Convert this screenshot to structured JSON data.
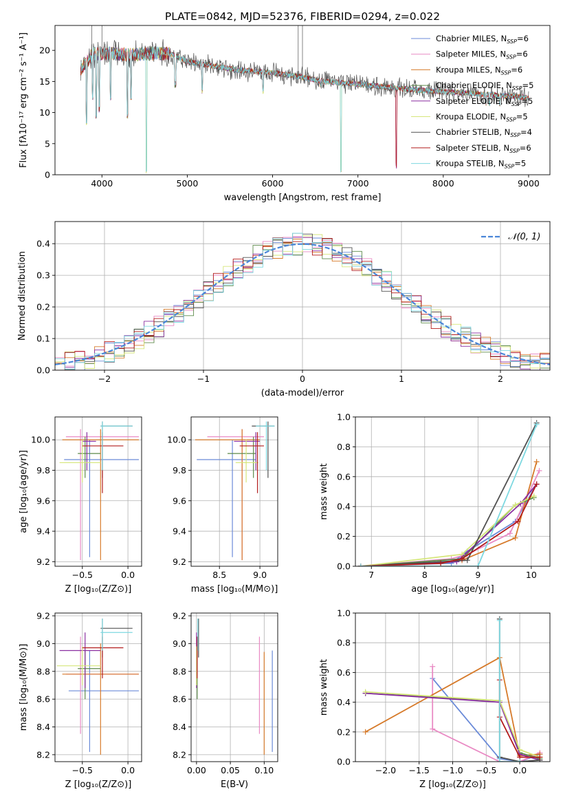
{
  "title": "PLATE=0842, MJD=52376, FIBERID=0294, z=0.022",
  "colors": {
    "chabrier_miles": "#6a8ad8",
    "salpeter_miles": "#e98ac4",
    "kroupa_miles": "#d67a2a",
    "chabrier_elodie": "#5c8a4a",
    "salpeter_elodie": "#8a2ea0",
    "kroupa_elodie": "#d6e67a",
    "chabrier_stelib": "#505050",
    "salpeter_stelib": "#b21a1a",
    "kroupa_stelib": "#7dd8e0",
    "normal_curve": "#4a86d8",
    "grid": "#b0b0b0"
  },
  "chart_data": [
    {
      "id": "spectrum",
      "type": "line",
      "xlabel": "wavelength [Angstrom, rest frame]",
      "ylabel": "Flux [fλ10⁻¹⁷ erg cm⁻² s⁻¹ A⁻¹]",
      "xlim": [
        3450,
        9250
      ],
      "ylim": [
        0,
        24
      ],
      "xticks": [
        "4000",
        "5000",
        "6000",
        "7000",
        "8000",
        "9000"
      ],
      "yticks": [
        "0",
        "5",
        "10",
        "15",
        "20"
      ],
      "legend_position": "top-right",
      "grid": false,
      "series": [
        {
          "name": "Chabrier MILES, N",
          "sub": "SSP",
          "suffix": "=6",
          "color_key": "chabrier_miles"
        },
        {
          "name": "Salpeter MILES, N",
          "sub": "SSP",
          "suffix": "=6",
          "color_key": "salpeter_miles"
        },
        {
          "name": "Kroupa MILES, N",
          "sub": "SSP",
          "suffix": "=6",
          "color_key": "kroupa_miles"
        },
        {
          "name": "Chabrier ELODIE, N",
          "sub": "SSP",
          "suffix": "=5",
          "color_key": "chabrier_elodie"
        },
        {
          "name": "Salpeter ELODIE, N",
          "sub": "SSP",
          "suffix": "=5",
          "color_key": "salpeter_elodie"
        },
        {
          "name": "Kroupa ELODIE, N",
          "sub": "SSP",
          "suffix": "=5",
          "color_key": "kroupa_elodie"
        },
        {
          "name": "Chabrier STELIB, N",
          "sub": "SSP",
          "suffix": "=4",
          "color_key": "chabrier_stelib"
        },
        {
          "name": "Salpeter STELIB, N",
          "sub": "SSP",
          "suffix": "=6",
          "color_key": "salpeter_stelib"
        },
        {
          "name": "Kroupa STELIB, N",
          "sub": "SSP",
          "suffix": "=5",
          "color_key": "kroupa_stelib"
        }
      ],
      "continuum": [
        [
          3750,
          17
        ],
        [
          3900,
          19.5
        ],
        [
          4100,
          19.5
        ],
        [
          4300,
          19.3
        ],
        [
          4600,
          19.5
        ],
        [
          4800,
          19.5
        ],
        [
          5000,
          18.2
        ],
        [
          5300,
          17.5
        ],
        [
          5600,
          16.8
        ],
        [
          6000,
          16.4
        ],
        [
          6300,
          15.8
        ],
        [
          6600,
          15.0
        ],
        [
          7000,
          14.6
        ],
        [
          7400,
          14.0
        ],
        [
          7800,
          13.5
        ],
        [
          8200,
          13.2
        ],
        [
          8600,
          12.8
        ],
        [
          9000,
          12.4
        ]
      ],
      "absorption_dips": [
        [
          3820,
          8
        ],
        [
          3890,
          12
        ],
        [
          3935,
          9
        ],
        [
          3970,
          10
        ],
        [
          4100,
          12
        ],
        [
          4300,
          9
        ],
        [
          4340,
          12
        ],
        [
          4520,
          0
        ],
        [
          4860,
          14
        ],
        [
          5175,
          13
        ],
        [
          5890,
          13
        ],
        [
          6560,
          14
        ],
        [
          6800,
          0
        ],
        [
          7450,
          1
        ],
        [
          8500,
          11
        ],
        [
          8540,
          11
        ],
        [
          8660,
          11
        ]
      ]
    },
    {
      "id": "residuals",
      "type": "histogram",
      "xlabel": "(data-model)/error",
      "ylabel": "Normed distribution",
      "xlim": [
        -2.5,
        2.5
      ],
      "ylim": [
        0,
        0.47
      ],
      "xticks": [
        "−2",
        "−1",
        "0",
        "1",
        "2"
      ],
      "yticks": [
        "0.0",
        "0.1",
        "0.2",
        "0.3",
        "0.4"
      ],
      "legend_position": "top-right",
      "legend_label": "𝒩(0, 1)",
      "grid": true,
      "bin_width": 0.1
    },
    {
      "id": "age_vs_Z",
      "type": "errorbar",
      "xlabel": "Z [log₁₀(Z/Z⊙)]",
      "ylabel": "age  [log₁₀(age/yr)]",
      "xlim": [
        -0.8,
        0.15
      ],
      "ylim": [
        9.17,
        10.15
      ],
      "xticks": [
        "−0.5",
        "0.0"
      ],
      "yticks": [
        "9.2",
        "9.4",
        "9.6",
        "9.8",
        "10.0"
      ],
      "points": [
        {
          "c": "chabrier_miles",
          "x": -0.42,
          "xe": [
            -0.7,
            0.12
          ],
          "y": 9.87,
          "ye": [
            9.23,
            10.0
          ]
        },
        {
          "c": "salpeter_miles",
          "x": -0.52,
          "xe": [
            -0.68,
            0.12
          ],
          "y": 10.02,
          "ye": [
            9.21,
            10.07
          ]
        },
        {
          "c": "kroupa_miles",
          "x": -0.3,
          "xe": [
            -0.72,
            0.12
          ],
          "y": 10.0,
          "ye": [
            9.21,
            10.07
          ]
        },
        {
          "c": "chabrier_elodie",
          "x": -0.47,
          "xe": [
            -0.55,
            -0.3
          ],
          "y": 9.91,
          "ye": [
            9.75,
            10.02
          ]
        },
        {
          "c": "salpeter_elodie",
          "x": -0.45,
          "xe": [
            -0.5,
            -0.35
          ],
          "y": 9.99,
          "ye": [
            9.8,
            10.05
          ]
        },
        {
          "c": "kroupa_elodie",
          "x": -0.5,
          "xe": [
            -0.75,
            -0.3
          ],
          "y": 9.85,
          "ye": [
            9.72,
            10.0
          ]
        },
        {
          "c": "chabrier_stelib",
          "x": -0.28,
          "xe": [
            -0.3,
            0.05
          ],
          "y": 10.09,
          "ye": [
            9.75,
            10.12
          ]
        },
        {
          "c": "salpeter_stelib",
          "x": -0.28,
          "xe": [
            -0.5,
            -0.05
          ],
          "y": 9.96,
          "ye": [
            9.65,
            10.05
          ]
        },
        {
          "c": "kroupa_stelib",
          "x": -0.28,
          "xe": [
            -0.3,
            0.05
          ],
          "y": 10.09,
          "ye": [
            9.8,
            10.12
          ]
        }
      ]
    },
    {
      "id": "age_vs_mass",
      "type": "errorbar",
      "xlabel": "mass [log₁₀(M/M⊙)]",
      "ylabel": "",
      "xlim": [
        8.15,
        9.22
      ],
      "ylim": [
        9.17,
        10.15
      ],
      "xticks": [
        "8.5",
        "9.0"
      ],
      "yticks": [
        "9.2",
        "9.4",
        "9.6",
        "9.8",
        "10.0"
      ],
      "points": [
        {
          "c": "chabrier_miles",
          "x": 8.66,
          "xe": [
            8.22,
            8.95
          ],
          "y": 9.87,
          "ye": [
            9.23,
            10.0
          ]
        },
        {
          "c": "salpeter_miles",
          "x": 8.78,
          "xe": [
            8.35,
            9.05
          ],
          "y": 10.02,
          "ye": [
            9.21,
            10.07
          ]
        },
        {
          "c": "kroupa_miles",
          "x": 8.78,
          "xe": [
            8.2,
            9.0
          ],
          "y": 10.0,
          "ye": [
            9.21,
            10.07
          ]
        },
        {
          "c": "chabrier_elodie",
          "x": 8.92,
          "xe": [
            8.6,
            8.95
          ],
          "y": 9.91,
          "ye": [
            9.75,
            10.02
          ]
        },
        {
          "c": "salpeter_elodie",
          "x": 8.95,
          "xe": [
            8.68,
            9.0
          ],
          "y": 9.99,
          "ye": [
            9.8,
            10.05
          ]
        },
        {
          "c": "kroupa_elodie",
          "x": 8.83,
          "xe": [
            8.7,
            8.98
          ],
          "y": 9.85,
          "ye": [
            9.72,
            10.0
          ]
        },
        {
          "c": "chabrier_stelib",
          "x": 9.1,
          "xe": [
            8.9,
            9.18
          ],
          "y": 10.09,
          "ye": [
            9.75,
            10.12
          ]
        },
        {
          "c": "salpeter_stelib",
          "x": 8.97,
          "xe": [
            8.75,
            9.05
          ],
          "y": 9.96,
          "ye": [
            9.65,
            10.05
          ]
        },
        {
          "c": "kroupa_stelib",
          "x": 9.08,
          "xe": [
            8.95,
            9.18
          ],
          "y": 10.09,
          "ye": [
            9.8,
            10.12
          ]
        }
      ]
    },
    {
      "id": "weight_vs_age",
      "type": "line",
      "xlabel": "age  [log₁₀(age/yr)]",
      "ylabel": "mass weight",
      "xlim": [
        6.7,
        10.35
      ],
      "ylim": [
        0,
        1.0
      ],
      "xticks": [
        "7",
        "8",
        "9",
        "10"
      ],
      "yticks": [
        "0.0",
        "0.2",
        "0.4",
        "0.6",
        "0.8",
        "1.0"
      ],
      "grid": true,
      "series": [
        {
          "c": "chabrier_miles",
          "x": [
            6.8,
            8.5,
            8.8,
            9.7,
            10.1
          ],
          "y": [
            0.0,
            0.02,
            0.1,
            0.3,
            0.55
          ]
        },
        {
          "c": "salpeter_miles",
          "x": [
            6.8,
            8.5,
            8.8,
            9.6,
            10.15
          ],
          "y": [
            0.0,
            0.05,
            0.08,
            0.22,
            0.64
          ]
        },
        {
          "c": "kroupa_miles",
          "x": [
            6.8,
            8.3,
            8.7,
            9.7,
            10.1
          ],
          "y": [
            0.0,
            0.02,
            0.04,
            0.19,
            0.7
          ]
        },
        {
          "c": "chabrier_elodie",
          "x": [
            6.8,
            8.7,
            9.7,
            10.05
          ],
          "y": [
            0.0,
            0.05,
            0.41,
            0.46
          ]
        },
        {
          "c": "salpeter_elodie",
          "x": [
            6.8,
            8.6,
            9.8,
            10.1
          ],
          "y": [
            0.0,
            0.03,
            0.42,
            0.55
          ]
        },
        {
          "c": "kroupa_elodie",
          "x": [
            6.8,
            8.7,
            9.7,
            10.05
          ],
          "y": [
            0.0,
            0.08,
            0.41,
            0.47
          ]
        },
        {
          "c": "chabrier_stelib",
          "x": [
            6.8,
            8.8,
            10.1
          ],
          "y": [
            0.0,
            0.04,
            0.96
          ]
        },
        {
          "c": "salpeter_stelib",
          "x": [
            6.8,
            8.3,
            8.7,
            9.75,
            10.1
          ],
          "y": [
            0.0,
            0.02,
            0.05,
            0.3,
            0.55
          ]
        },
        {
          "c": "kroupa_stelib",
          "x": [
            6.8,
            9.0,
            10.1
          ],
          "y": [
            0.0,
            0.0,
            0.95
          ]
        }
      ]
    },
    {
      "id": "mass_vs_Z",
      "type": "errorbar",
      "xlabel": "Z [log₁₀(Z/Z⊙)]",
      "ylabel": "mass [log₁₀(M/M⊙)]",
      "xlim": [
        -0.8,
        0.15
      ],
      "ylim": [
        8.15,
        9.22
      ],
      "xticks": [
        "−0.5",
        "0.0"
      ],
      "yticks": [
        "8.2",
        "8.4",
        "8.6",
        "8.8",
        "9.0",
        "9.2"
      ],
      "points": [
        {
          "c": "chabrier_miles",
          "x": -0.42,
          "xe": [
            -0.65,
            0.12
          ],
          "y": 8.66,
          "ye": [
            8.22,
            8.95
          ]
        },
        {
          "c": "salpeter_miles",
          "x": -0.52,
          "xe": [
            -0.68,
            0.12
          ],
          "y": 8.78,
          "ye": [
            8.35,
            9.05
          ]
        },
        {
          "c": "kroupa_miles",
          "x": -0.3,
          "xe": [
            -0.72,
            0.12
          ],
          "y": 8.78,
          "ye": [
            8.2,
            9.0
          ]
        },
        {
          "c": "chabrier_elodie",
          "x": -0.47,
          "xe": [
            -0.55,
            -0.3
          ],
          "y": 8.82,
          "ye": [
            8.6,
            8.95
          ]
        },
        {
          "c": "salpeter_elodie",
          "x": -0.47,
          "xe": [
            -0.75,
            -0.3
          ],
          "y": 8.95,
          "ye": [
            8.68,
            9.08
          ]
        },
        {
          "c": "kroupa_elodie",
          "x": -0.5,
          "xe": [
            -0.78,
            -0.3
          ],
          "y": 8.84,
          "ye": [
            8.7,
            8.98
          ]
        },
        {
          "c": "chabrier_stelib",
          "x": -0.28,
          "xe": [
            -0.3,
            0.05
          ],
          "y": 9.11,
          "ye": [
            8.9,
            9.18
          ]
        },
        {
          "c": "salpeter_stelib",
          "x": -0.28,
          "xe": [
            -0.5,
            -0.05
          ],
          "y": 8.97,
          "ye": [
            8.75,
            9.05
          ]
        },
        {
          "c": "kroupa_stelib",
          "x": -0.28,
          "xe": [
            -0.3,
            0.05
          ],
          "y": 9.08,
          "ye": [
            8.95,
            9.18
          ]
        }
      ]
    },
    {
      "id": "mass_vs_ebv",
      "type": "errorbar",
      "xlabel": "E(B-V)",
      "ylabel": "",
      "xlim": [
        -0.008,
        0.12
      ],
      "ylim": [
        8.15,
        9.22
      ],
      "xticks": [
        "0.00",
        "0.05",
        "0.10"
      ],
      "yticks": [
        "8.2",
        "8.4",
        "8.6",
        "8.8",
        "9.0",
        "9.2"
      ],
      "points": [
        {
          "c": "chabrier_miles",
          "x": 0.112,
          "y": 8.66,
          "ye": [
            8.22,
            8.95
          ]
        },
        {
          "c": "salpeter_miles",
          "x": 0.093,
          "y": 8.78,
          "ye": [
            8.35,
            9.05
          ]
        },
        {
          "c": "kroupa_miles",
          "x": 0.1,
          "y": 8.78,
          "ye": [
            8.2,
            8.94
          ]
        },
        {
          "c": "chabrier_elodie",
          "x": 0.001,
          "y": 8.82,
          "ye": [
            8.6,
            8.95
          ]
        },
        {
          "c": "salpeter_elodie",
          "x": 0.0,
          "y": 8.95,
          "ye": [
            8.68,
            9.08
          ]
        },
        {
          "c": "kroupa_elodie",
          "x": 0.0,
          "y": 8.84,
          "ye": [
            8.7,
            8.98
          ]
        },
        {
          "c": "chabrier_stelib",
          "x": 0.003,
          "y": 9.11,
          "ye": [
            8.9,
            9.18
          ]
        },
        {
          "c": "salpeter_stelib",
          "x": 0.001,
          "y": 8.97,
          "ye": [
            8.75,
            9.05
          ]
        },
        {
          "c": "kroupa_stelib",
          "x": 0.002,
          "y": 9.08,
          "ye": [
            8.95,
            9.18
          ]
        }
      ]
    },
    {
      "id": "weight_vs_Z",
      "type": "line",
      "xlabel": "Z [log₁₀(Z/Z⊙)]",
      "ylabel": "mass weight",
      "xlim": [
        -2.45,
        0.45
      ],
      "ylim": [
        0,
        1.0
      ],
      "xticks": [
        "−2.0",
        "−1.5",
        "−1.0",
        "−0.5",
        "0.0"
      ],
      "yticks": [
        "0.0",
        "0.2",
        "0.4",
        "0.6",
        "0.8",
        "1.0"
      ],
      "grid": true,
      "series": [
        {
          "c": "chabrier_miles",
          "x": [
            -1.3,
            -0.3,
            0.0,
            0.3
          ],
          "y": [
            0.56,
            0.02,
            0.0,
            0.05
          ]
        },
        {
          "c": "salpeter_miles",
          "x": [
            -1.3,
            -1.3,
            -0.3,
            0.0,
            0.3
          ],
          "y": [
            0.64,
            0.22,
            0.0,
            0.0,
            0.06
          ]
        },
        {
          "c": "kroupa_miles",
          "x": [
            -2.3,
            -0.3,
            0.0,
            0.3
          ],
          "y": [
            0.2,
            0.7,
            0.04,
            0.05
          ]
        },
        {
          "c": "chabrier_elodie",
          "x": [
            -2.3,
            -0.3,
            0.0,
            0.3
          ],
          "y": [
            0.46,
            0.41,
            0.06,
            0.02
          ]
        },
        {
          "c": "salpeter_elodie",
          "x": [
            -2.3,
            -0.3,
            0.0,
            0.3
          ],
          "y": [
            0.46,
            0.4,
            0.05,
            0.01
          ]
        },
        {
          "c": "kroupa_elodie",
          "x": [
            -2.3,
            -0.3,
            0.0,
            0.3
          ],
          "y": [
            0.47,
            0.41,
            0.08,
            0.03
          ]
        },
        {
          "c": "chabrier_stelib",
          "x": [
            -0.3,
            -0.3,
            0.0,
            0.3
          ],
          "y": [
            0.96,
            0.03,
            0.0,
            0.01
          ]
        },
        {
          "c": "salpeter_stelib",
          "x": [
            -0.3,
            -0.3,
            0.0,
            0.3
          ],
          "y": [
            0.55,
            0.3,
            0.03,
            0.03
          ]
        },
        {
          "c": "kroupa_stelib",
          "x": [
            -0.3,
            -0.3,
            0.0
          ],
          "y": [
            0.95,
            0.0,
            0.0
          ]
        }
      ]
    }
  ]
}
